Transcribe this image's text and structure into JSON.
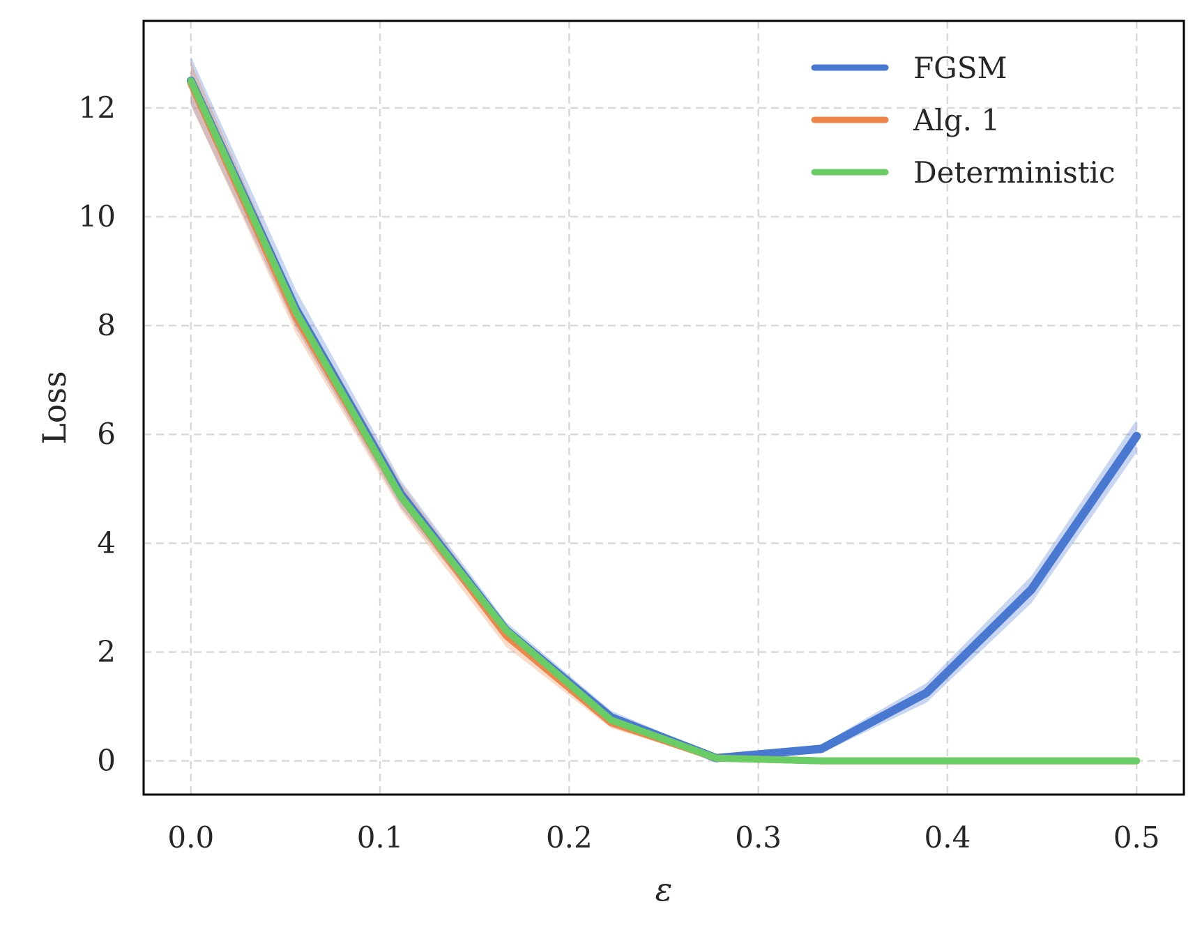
{
  "chart_data": {
    "type": "line",
    "title": "",
    "xlabel": "ε",
    "ylabel": "Loss",
    "xlim": [
      -0.025,
      0.525
    ],
    "ylim": [
      -0.62,
      13.6
    ],
    "xticks": [
      0.0,
      0.1,
      0.2,
      0.3,
      0.4,
      0.5
    ],
    "xtick_labels": [
      "0.0",
      "0.1",
      "0.2",
      "0.3",
      "0.4",
      "0.5"
    ],
    "yticks": [
      0,
      2,
      4,
      6,
      8,
      10,
      12
    ],
    "ytick_labels": [
      "0",
      "2",
      "4",
      "6",
      "8",
      "10",
      "12"
    ],
    "grid": true,
    "legend_position": "top-right",
    "x": [
      0.0,
      0.0556,
      0.1111,
      0.1667,
      0.2222,
      0.2778,
      0.3333,
      0.3889,
      0.4444,
      0.5
    ],
    "series": [
      {
        "name": "FGSM",
        "color": "#4878d0",
        "values": [
          12.5,
          8.3,
          4.9,
          2.4,
          0.8,
          0.05,
          0.22,
          1.25,
          3.15,
          5.97
        ],
        "band": [
          0.45,
          0.35,
          0.25,
          0.15,
          0.12,
          0.05,
          0.08,
          0.18,
          0.25,
          0.3
        ]
      },
      {
        "name": "Alg. 1",
        "color": "#ee854a",
        "values": [
          12.45,
          8.15,
          4.85,
          2.3,
          0.7,
          0.05,
          0.0,
          0.0,
          0.0,
          0.0
        ],
        "band": [
          0.4,
          0.3,
          0.25,
          0.2,
          0.1,
          0.03,
          0.0,
          0.0,
          0.0,
          0.0
        ]
      },
      {
        "name": "Deterministic",
        "color": "#6acc64",
        "values": [
          12.5,
          8.25,
          4.85,
          2.4,
          0.75,
          0.05,
          0.0,
          0.0,
          0.0,
          0.0
        ],
        "band": [
          0,
          0,
          0,
          0,
          0,
          0,
          0,
          0,
          0,
          0
        ]
      }
    ]
  }
}
